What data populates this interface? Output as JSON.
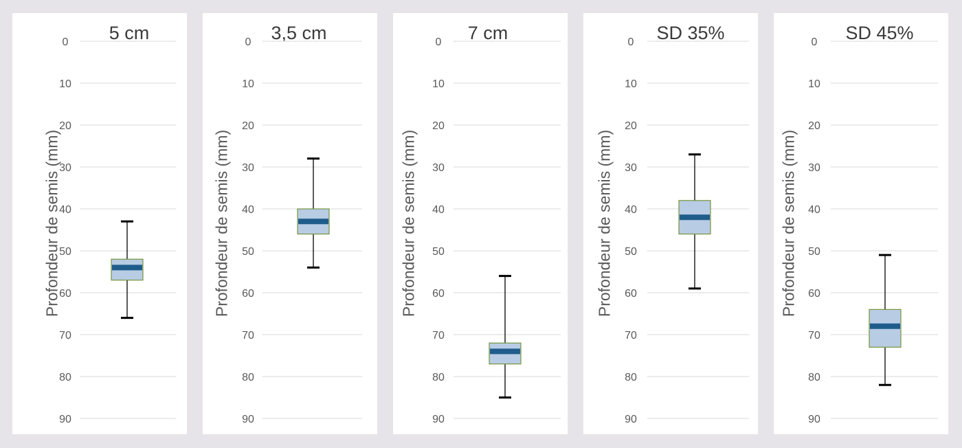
{
  "chart_data": [
    {
      "type": "box",
      "title": "5 cm",
      "ylabel": "Profondeur de semis (mm)",
      "ylim": [
        0,
        90
      ],
      "y_inverted": true,
      "yticks": [
        0,
        10,
        20,
        30,
        40,
        50,
        60,
        70,
        80,
        90
      ],
      "grid": true,
      "box": {
        "min": 43,
        "q1": 52,
        "median": 54,
        "q3": 57,
        "max": 66
      }
    },
    {
      "type": "box",
      "title": "3,5 cm",
      "ylabel": "Profondeur de semis (mm)",
      "ylim": [
        0,
        90
      ],
      "y_inverted": true,
      "yticks": [
        0,
        10,
        20,
        30,
        40,
        50,
        60,
        70,
        80,
        90
      ],
      "grid": true,
      "box": {
        "min": 28,
        "q1": 40,
        "median": 43,
        "q3": 46,
        "max": 54
      }
    },
    {
      "type": "box",
      "title": "7 cm",
      "ylabel": "Profondeur de semis (mm)",
      "ylim": [
        0,
        90
      ],
      "y_inverted": true,
      "yticks": [
        0,
        10,
        20,
        30,
        40,
        50,
        60,
        70,
        80,
        90
      ],
      "grid": true,
      "box": {
        "min": 56,
        "q1": 72,
        "median": 74,
        "q3": 77,
        "max": 85
      }
    },
    {
      "type": "box",
      "title": "SD 35%",
      "ylabel": "Profondeur de semis (mm)",
      "ylim": [
        0,
        90
      ],
      "y_inverted": true,
      "yticks": [
        0,
        10,
        20,
        30,
        40,
        50,
        60,
        70,
        80,
        90
      ],
      "grid": true,
      "box": {
        "min": 27,
        "q1": 38,
        "median": 42,
        "q3": 46,
        "max": 59
      }
    },
    {
      "type": "box",
      "title": "SD 45%",
      "ylabel": "Profondeur de semis (mm)",
      "ylim": [
        0,
        90
      ],
      "y_inverted": true,
      "yticks": [
        0,
        10,
        20,
        30,
        40,
        50,
        60,
        70,
        80,
        90
      ],
      "grid": true,
      "box": {
        "min": 51,
        "q1": 64,
        "median": 68,
        "q3": 73,
        "max": 82
      }
    }
  ],
  "colors": {
    "background": "#e7e4e9",
    "panel": "#ffffff",
    "box_fill": "#b8cce4",
    "box_border": "#77933c",
    "median": "#1f5c8b",
    "whisker": "#000000",
    "grid": "#d9d9d9",
    "tick_text": "#595959"
  }
}
